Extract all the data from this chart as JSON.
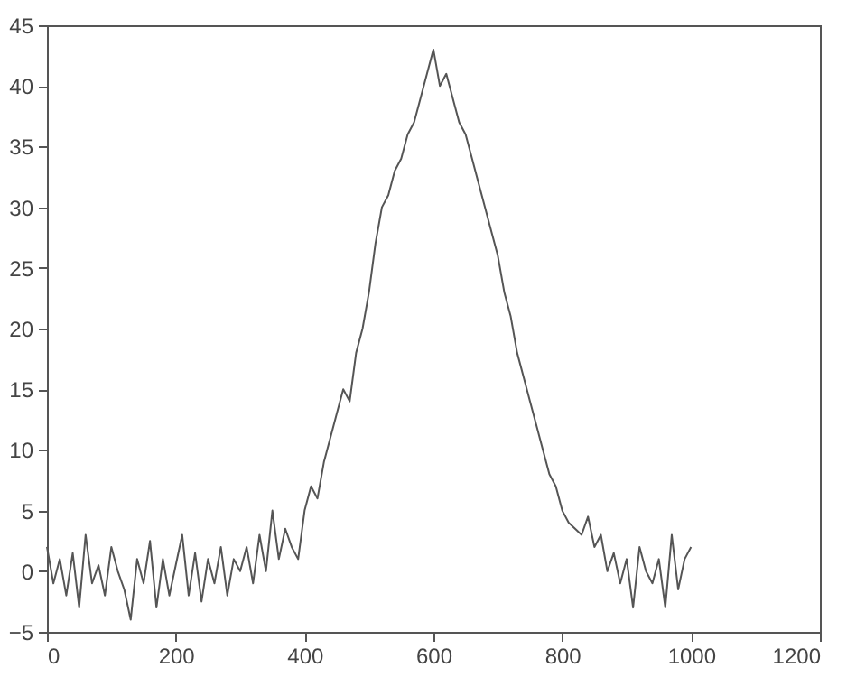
{
  "chart_data": {
    "type": "line",
    "x": [
      0,
      10,
      20,
      30,
      40,
      50,
      60,
      70,
      80,
      90,
      100,
      110,
      120,
      130,
      140,
      150,
      160,
      170,
      180,
      190,
      200,
      210,
      220,
      230,
      240,
      250,
      260,
      270,
      280,
      290,
      300,
      310,
      320,
      330,
      340,
      350,
      360,
      370,
      380,
      390,
      400,
      410,
      420,
      430,
      440,
      450,
      460,
      470,
      480,
      490,
      500,
      510,
      520,
      530,
      540,
      550,
      560,
      570,
      580,
      590,
      600,
      610,
      620,
      630,
      640,
      650,
      660,
      670,
      680,
      690,
      700,
      710,
      720,
      730,
      740,
      750,
      760,
      770,
      780,
      790,
      800,
      810,
      820,
      830,
      840,
      850,
      860,
      870,
      880,
      890,
      900,
      910,
      920,
      930,
      940,
      950,
      960,
      970,
      980,
      990,
      1000
    ],
    "series": [
      {
        "color": "#555555",
        "values": [
          2,
          -1,
          1,
          -2,
          1.5,
          -3,
          3,
          -1,
          0.5,
          -2,
          2,
          0,
          -1.5,
          -4,
          1,
          -1,
          2.5,
          -3,
          1,
          -2,
          0.5,
          3,
          -2,
          1.5,
          -2.5,
          1,
          -1,
          2,
          -2,
          1,
          0,
          2,
          -1,
          3,
          0,
          5,
          1,
          3.5,
          2,
          1,
          5,
          7,
          6,
          9,
          11,
          13,
          15,
          14,
          18,
          20,
          23,
          27,
          30,
          31,
          33,
          34,
          36,
          37,
          39,
          41,
          43,
          40,
          41,
          39,
          37,
          36,
          34,
          32,
          30,
          28,
          26,
          23,
          21,
          18,
          16,
          14,
          12,
          10,
          8,
          7,
          5,
          4,
          3.5,
          3,
          4.5,
          2,
          3,
          0,
          1.5,
          -1,
          1,
          -3,
          2,
          0,
          -1,
          1,
          -3,
          3,
          -1.5,
          1,
          2
        ]
      }
    ],
    "xlim": [
      0,
      1200
    ],
    "xticks": [
      0,
      200,
      400,
      600,
      800,
      1000,
      1200
    ],
    "ylim": [
      -5,
      45
    ],
    "yticks": [
      -5,
      0,
      5,
      10,
      15,
      20,
      25,
      30,
      35,
      40,
      45
    ],
    "grid": false,
    "marker": "none",
    "line_style": "solid"
  }
}
